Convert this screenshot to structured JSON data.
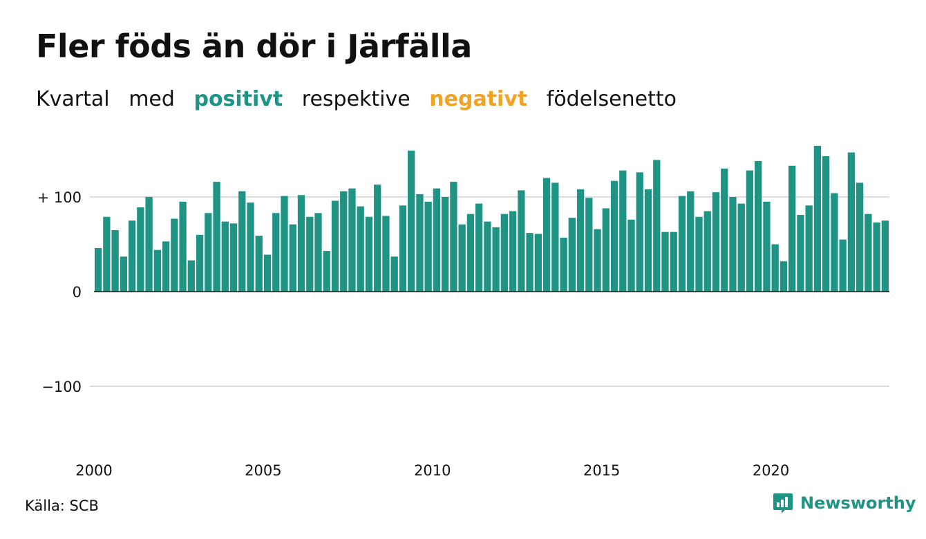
{
  "title": "Fler föds än dör i Järfälla",
  "subtitle": {
    "p1": "Kvartal",
    "p2": "med",
    "positive": "positivt",
    "p3": "respektive",
    "negative": "negativt",
    "p4": "födelsenetto"
  },
  "source": "Källa: SCB",
  "brand": "Newsworthy",
  "colors": {
    "positive": "#1f9384",
    "negative": "#f0a224"
  },
  "chart_data": {
    "type": "bar",
    "x_start": "2000 Q1",
    "x_end": "2023 Q2",
    "ylim": [
      -160,
      200
    ],
    "y_ticks": [
      {
        "value": 100,
        "label": "+ 100"
      },
      {
        "value": 0,
        "label": "0"
      },
      {
        "value": -100,
        "label": "−100"
      }
    ],
    "x_ticks": [
      "2000",
      "2005",
      "2010",
      "2015",
      "2020"
    ],
    "grid": true,
    "values": [
      46,
      79,
      65,
      37,
      75,
      89,
      100,
      44,
      53,
      77,
      95,
      33,
      60,
      83,
      116,
      74,
      72,
      106,
      94,
      59,
      39,
      83,
      101,
      71,
      102,
      79,
      83,
      43,
      96,
      106,
      109,
      90,
      79,
      113,
      80,
      37,
      91,
      149,
      103,
      95,
      109,
      100,
      116,
      71,
      82,
      93,
      74,
      68,
      82,
      85,
      107,
      62,
      61,
      120,
      115,
      57,
      78,
      108,
      99,
      66,
      88,
      117,
      128,
      76,
      126,
      108,
      139,
      63,
      63,
      101,
      106,
      79,
      85,
      105,
      130,
      100,
      93,
      128,
      138,
      95,
      50,
      32,
      133,
      81,
      91,
      154,
      143,
      104,
      55,
      147,
      115,
      82,
      73,
      75
    ]
  }
}
